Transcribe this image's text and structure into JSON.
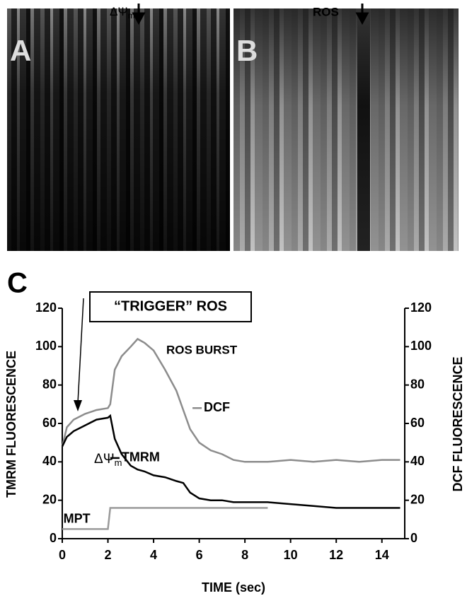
{
  "panel_a": {
    "label": "A",
    "marker": "ΔΨ",
    "marker_sub": "m"
  },
  "panel_b": {
    "label": "B",
    "marker": "ROS"
  },
  "chart_data": {
    "type": "line",
    "panel_label": "C",
    "x_label": "TIME (sec)",
    "y_label": "TMRM FLUORESCENCE",
    "y2_label": "DCF FLUORESCENCE",
    "annotations": {
      "trigger": "“TRIGGER” ROS",
      "burst": "ROS BURST",
      "potential": "ΔΨ",
      "potential_sub": "m"
    },
    "xlim": [
      0,
      15
    ],
    "xticks": [
      0,
      2,
      4,
      6,
      8,
      10,
      12,
      14
    ],
    "ylim": [
      0,
      120
    ],
    "yticks": [
      0,
      20,
      40,
      60,
      80,
      100,
      120
    ],
    "y2lim": [
      0,
      120
    ],
    "y2ticks": [
      0,
      20,
      40,
      60,
      80,
      100,
      120
    ],
    "x": [
      0,
      0.2,
      0.5,
      1,
      1.5,
      2,
      2.1,
      2.3,
      2.6,
      3,
      3.3,
      3.6,
      4,
      4.5,
      5,
      5.3,
      5.6,
      6,
      6.5,
      7,
      7.5,
      8,
      9,
      10,
      11,
      12,
      13,
      14,
      14.8
    ],
    "series": [
      {
        "name": "DCF",
        "color": "#8c8c8c",
        "axis": "y2",
        "values": [
          48,
          58,
          62,
          65,
          67,
          68,
          70,
          88,
          95,
          100,
          104,
          102,
          98,
          88,
          77,
          67,
          57,
          50,
          46,
          44,
          41,
          40,
          40,
          41,
          40,
          41,
          40,
          41,
          41
        ]
      },
      {
        "name": "TMRM",
        "color": "#000000",
        "values": [
          48,
          53,
          56,
          59,
          62,
          63,
          64,
          52,
          44,
          38,
          36,
          35,
          33,
          32,
          30,
          29,
          24,
          21,
          20,
          20,
          19,
          19,
          19,
          18,
          17,
          16,
          16,
          16,
          16
        ]
      },
      {
        "name": "MPT",
        "color": "#9a9a9a",
        "values": [
          5,
          5,
          5,
          5,
          5,
          5,
          16,
          16,
          16,
          16,
          16,
          16,
          16,
          16,
          16,
          16,
          16,
          16,
          16,
          16,
          16,
          16,
          16,
          null,
          null,
          null,
          null,
          null,
          null
        ]
      }
    ]
  }
}
